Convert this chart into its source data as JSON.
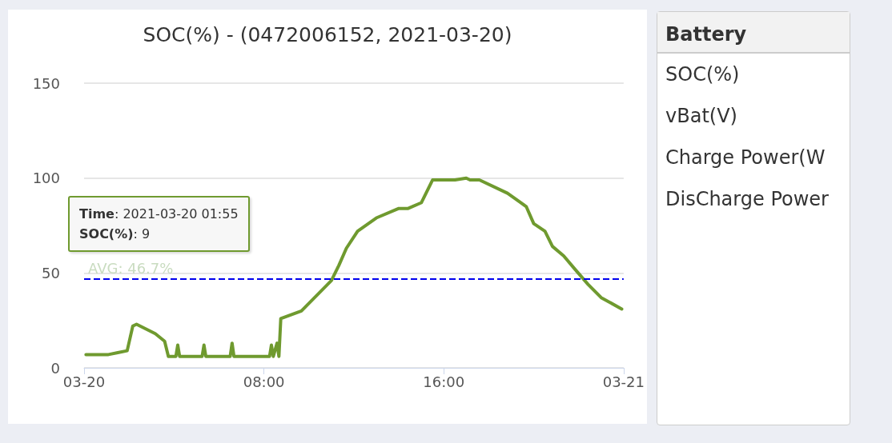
{
  "chart_data": [
    {
      "type": "line",
      "title": "SOC(%) - (0472006152, 2021-03-20)",
      "x": [
        "2021-03-20T00:05",
        "2021-03-20T01:05",
        "2021-03-20T01:30",
        "2021-03-20T01:55",
        "2021-03-20T02:10",
        "2021-03-20T02:20",
        "2021-03-20T03:10",
        "2021-03-20T03:35",
        "2021-03-20T03:45",
        "2021-03-20T04:05",
        "2021-03-20T04:10",
        "2021-03-20T04:15",
        "2021-03-20T05:15",
        "2021-03-20T05:20",
        "2021-03-20T05:25",
        "2021-03-20T06:30",
        "2021-03-20T06:35",
        "2021-03-20T06:40",
        "2021-03-20T08:15",
        "2021-03-20T08:20",
        "2021-03-20T08:25",
        "2021-03-20T08:35",
        "2021-03-20T08:40",
        "2021-03-20T08:45",
        "2021-03-20T09:40",
        "2021-03-20T10:20",
        "2021-03-20T11:00",
        "2021-03-20T11:20",
        "2021-03-20T11:40",
        "2021-03-20T12:10",
        "2021-03-20T13:00",
        "2021-03-20T14:00",
        "2021-03-20T14:25",
        "2021-03-20T15:00",
        "2021-03-20T15:30",
        "2021-03-20T16:30",
        "2021-03-20T17:00",
        "2021-03-20T17:10",
        "2021-03-20T17:35",
        "2021-03-20T18:50",
        "2021-03-20T19:40",
        "2021-03-20T20:00",
        "2021-03-20T20:30",
        "2021-03-20T20:50",
        "2021-03-20T21:20",
        "2021-03-20T21:50",
        "2021-03-20T22:25",
        "2021-03-20T23:00",
        "2021-03-20T23:55"
      ],
      "series": [
        {
          "color": "#6f9a2f",
          "values": [
            7,
            7,
            8,
            9,
            22,
            23,
            18,
            14,
            6,
            6,
            12,
            6,
            6,
            12,
            6,
            6,
            13,
            6,
            6,
            12,
            6,
            13,
            6,
            26,
            30,
            38,
            46,
            54,
            63,
            72,
            79,
            84,
            84,
            87,
            99,
            99,
            100,
            99,
            99,
            92,
            85,
            76,
            72,
            64,
            59,
            52,
            44,
            37,
            31
          ]
        }
      ],
      "xlim": [
        "2021-03-20T00:00",
        "2021-03-21T00:00"
      ],
      "xticks": [
        {
          "value": "2021-03-20T00:00",
          "label": "03-20"
        },
        {
          "value": "2021-03-20T08:00",
          "label": "08:00"
        },
        {
          "value": "2021-03-20T16:00",
          "label": "16:00"
        },
        {
          "value": "2021-03-21T00:00",
          "label": "03-21"
        }
      ],
      "ylim": [
        0,
        150
      ],
      "yticks": [
        0,
        50,
        100,
        150
      ],
      "grid": "y",
      "marker": "none",
      "line_style": "solid",
      "ref_lines": [
        {
          "axis": "y",
          "value": 46.7,
          "label": "AVG: 46.7%",
          "color": "#0000ee",
          "line_style": "dashed"
        }
      ],
      "annotations": [
        "Time: 2021-03-20 01:55\nSOC(%): 9"
      ]
    },
    {
      "type": "other",
      "title": "Battery",
      "annotations": [
        "SOC(%)",
        "vBat(V)",
        "Charge Power(W",
        "DisCharge Power"
      ]
    }
  ]
}
